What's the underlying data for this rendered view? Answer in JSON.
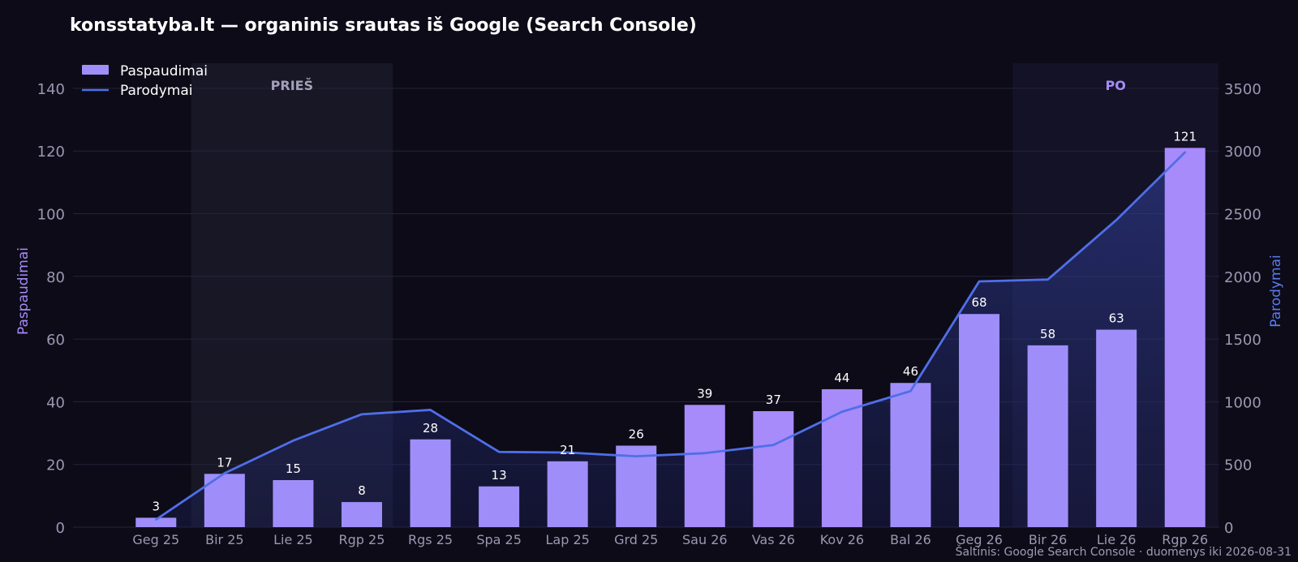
{
  "colors": {
    "background": "#0d0b17",
    "bars": "#9f8ef9",
    "bars_highlight": "#a78bfa",
    "line": "#4f6fe8",
    "area_fill": "#2b3a8a",
    "grid": "#262338",
    "band_before": "#181726",
    "band_after": "#141226",
    "band_before_text": "#a5a0b8",
    "band_after_text": "#a78bfa"
  },
  "chart_data": {
    "type": "bar",
    "title": "konsstatyba.lt — organinis srautas iš Google (Search Console)",
    "categories": [
      "Geg 25",
      "Bir 25",
      "Lie 25",
      "Rgp 25",
      "Rgs 25",
      "Spa 25",
      "Lap 25",
      "Grd 25",
      "Sau 26",
      "Vas 26",
      "Kov 26",
      "Bal 26",
      "Geg 26",
      "Bir 26",
      "Lie 26",
      "Rgp 26"
    ],
    "series": [
      {
        "name": "Paspaudimai",
        "type": "bar",
        "axis": "left",
        "values": [
          3,
          17,
          15,
          8,
          28,
          13,
          21,
          26,
          39,
          37,
          44,
          46,
          68,
          58,
          63,
          121
        ],
        "labels": [
          "3",
          "17",
          "15",
          "8",
          "28",
          "13",
          "21",
          "26",
          "39",
          "37",
          "44",
          "46",
          "68",
          "58",
          "63",
          "121"
        ]
      },
      {
        "name": "Parodymai",
        "type": "line",
        "axis": "right",
        "values": [
          60,
          430,
          690,
          900,
          935,
          600,
          595,
          565,
          590,
          655,
          920,
          1085,
          1960,
          1975,
          2450,
          2990
        ]
      }
    ],
    "ylabel": "Paspaudimai",
    "ylabel_right": "Parodymai",
    "ylim": [
      0,
      148
    ],
    "ylim_right": [
      0,
      3700
    ],
    "yticks": [
      0,
      20,
      40,
      60,
      80,
      100,
      120,
      140
    ],
    "yticks_labels": [
      "0",
      "20",
      "40",
      "60",
      "80",
      "100",
      "120",
      "140"
    ],
    "yticks_right": [
      0,
      500,
      1000,
      1500,
      2000,
      2500,
      3000,
      3500
    ],
    "yticks_right_labels": [
      "0",
      "500",
      "1000",
      "1500",
      "2000",
      "2500",
      "3000",
      "3500"
    ],
    "grid": true,
    "legend_position": "top-left",
    "annotations": {
      "before": {
        "label": "PRIEŠ",
        "from": "Bir 25",
        "to": "Rgp 25"
      },
      "after": {
        "label": "PO",
        "from": "Bir 26",
        "to": "Rgp 26"
      }
    },
    "source": "Šaltinis: Google Search Console · duomenys iki 2026-08-31"
  }
}
